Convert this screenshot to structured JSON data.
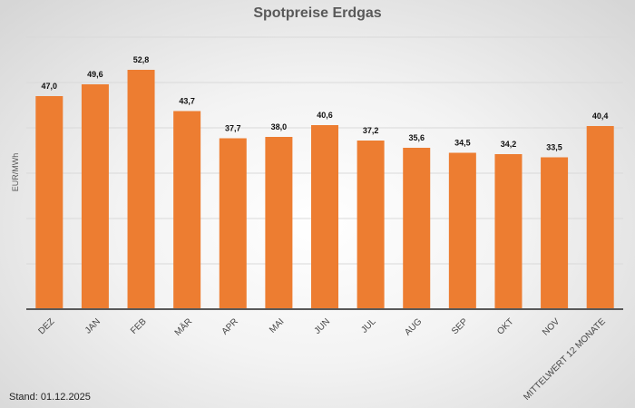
{
  "chart_data": {
    "type": "bar",
    "title": "Spotpreise Erdgas",
    "xlabel": "",
    "ylabel": "EUR/MWh",
    "ylim": [
      0,
      60
    ],
    "grid": true,
    "legend": "none",
    "categories": [
      "DEZ",
      "JAN",
      "FEB",
      "MÄR",
      "APR",
      "MAI",
      "JUN",
      "JUL",
      "AUG",
      "SEP",
      "OKT",
      "NOV",
      "MITTELWERT 12 MONATE"
    ],
    "values": [
      47.0,
      49.6,
      52.8,
      43.7,
      37.7,
      38.0,
      40.6,
      37.2,
      35.6,
      34.5,
      34.2,
      33.5,
      40.4
    ],
    "data_labels": [
      "47,0",
      "49,6",
      "52,8",
      "43,7",
      "37,7",
      "38,0",
      "40,6",
      "37,2",
      "35,6",
      "34,5",
      "34,2",
      "33,5",
      "40,4"
    ],
    "bar_color": "#ED7D31"
  },
  "footer": "Stand: 01.12.2025"
}
